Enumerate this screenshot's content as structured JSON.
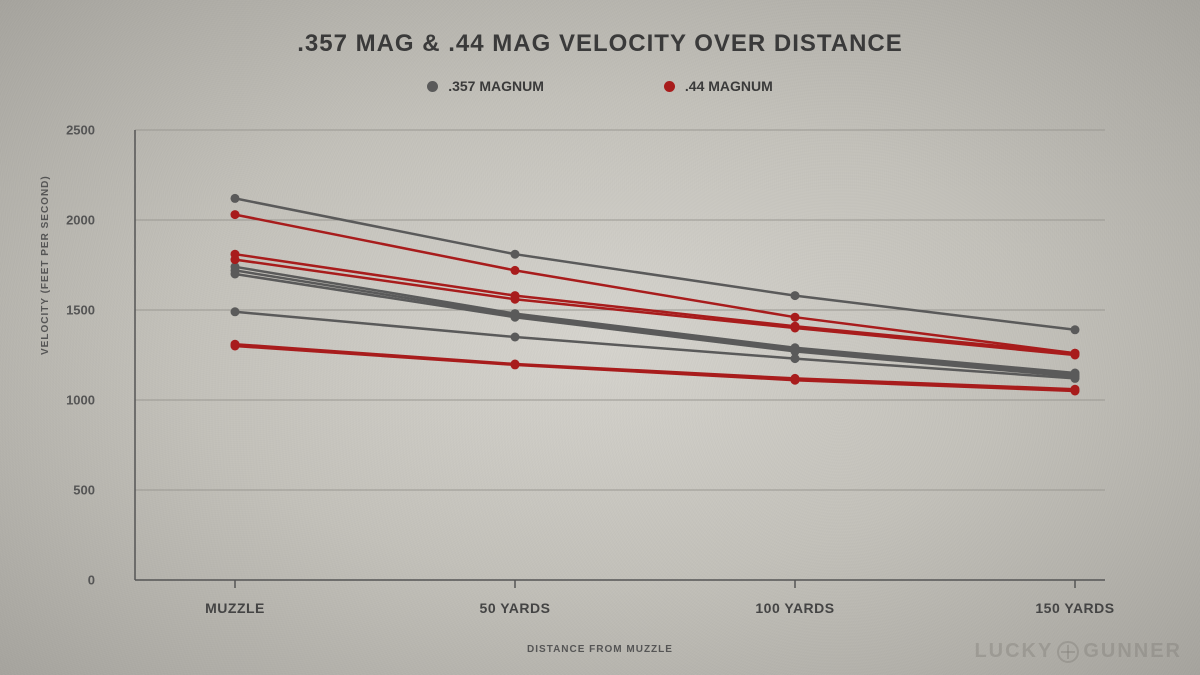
{
  "chart": {
    "type": "line",
    "title": ".357 MAG & .44 MAG VELOCITY OVER DISTANCE",
    "title_fontsize": 24,
    "title_color": "#3a3a3a",
    "background_gradient": [
      "#d8d6d0",
      "#a8a6a0"
    ],
    "x_axis": {
      "label": "DISTANCE FROM MUZZLE",
      "categories": [
        "MUZZLE",
        "50 YARDS",
        "100 YARDS",
        "150 YARDS"
      ],
      "label_fontsize": 10,
      "tick_fontsize": 14,
      "tick_color": "#444"
    },
    "y_axis": {
      "label": "VELOCITY (FEET PER SECOND)",
      "ylim": [
        0,
        2500
      ],
      "ytick_step": 500,
      "ticks": [
        0,
        500,
        1000,
        1500,
        2000,
        2500
      ],
      "label_fontsize": 10,
      "tick_fontsize": 13,
      "tick_color": "#555"
    },
    "grid_color": "#9a9892",
    "axis_color": "#555555",
    "marker_radius": 4.5,
    "line_width": 2.5,
    "legend": {
      "items": [
        {
          "label": ".357 MAGNUM",
          "color": "#5a5a5a"
        },
        {
          "label": ".44 MAGNUM",
          "color": "#a81c1c"
        }
      ],
      "fontsize": 14
    },
    "series": [
      {
        "group": ".357 MAGNUM",
        "color": "#5a5a5a",
        "values": [
          2120,
          1810,
          1580,
          1390
        ]
      },
      {
        "group": ".357 MAGNUM",
        "color": "#5a5a5a",
        "values": [
          1740,
          1480,
          1290,
          1150
        ]
      },
      {
        "group": ".357 MAGNUM",
        "color": "#5a5a5a",
        "values": [
          1720,
          1470,
          1280,
          1140
        ]
      },
      {
        "group": ".357 MAGNUM",
        "color": "#5a5a5a",
        "values": [
          1700,
          1460,
          1270,
          1130
        ]
      },
      {
        "group": ".357 MAGNUM",
        "color": "#5a5a5a",
        "values": [
          1490,
          1350,
          1230,
          1120
        ]
      },
      {
        "group": ".44 MAGNUM",
        "color": "#a81c1c",
        "values": [
          2030,
          1720,
          1460,
          1260
        ]
      },
      {
        "group": ".44 MAGNUM",
        "color": "#a81c1c",
        "values": [
          1810,
          1580,
          1410,
          1260
        ]
      },
      {
        "group": ".44 MAGNUM",
        "color": "#a81c1c",
        "values": [
          1780,
          1560,
          1400,
          1250
        ]
      },
      {
        "group": ".44 MAGNUM",
        "color": "#a81c1c",
        "values": [
          1310,
          1200,
          1120,
          1060
        ]
      },
      {
        "group": ".44 MAGNUM",
        "color": "#a81c1c",
        "values": [
          1300,
          1195,
          1110,
          1050
        ]
      }
    ],
    "watermark": {
      "text_left": "LUCKY",
      "text_right": "GUNNER",
      "color": "rgba(120,118,112,0.35)"
    }
  }
}
